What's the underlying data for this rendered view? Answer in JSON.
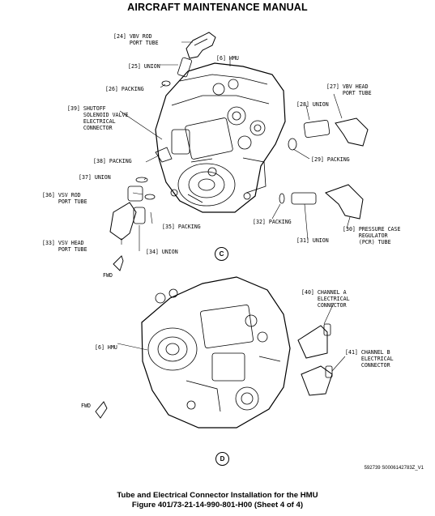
{
  "header": {
    "title": "AIRCRAFT MAINTENANCE MANUAL"
  },
  "view_c": {
    "callouts": [
      "[24] VBV ROD\n     PORT TUBE",
      "[25] UNION",
      "[6] HMU",
      "[26] PACKING",
      "[27] VBV HEAD\n     PORT TUBE",
      "[28] UNION",
      "[39] SHUTOFF\n     SOLENOID VALVE\n     ELECTRICAL\n     CONNECTOR",
      "[29] PACKING",
      "[38] PACKING",
      "[37] UNION",
      "[36] VSV ROD\n     PORT TUBE",
      "[35] PACKING",
      "[32] PACKING",
      "[30] PRESSURE CASE\n     REGULATOR\n     (PCR) TUBE",
      "[31] UNION",
      "[33] VSV HEAD\n     PORT TUBE",
      "[34] UNION"
    ],
    "fwd_label": "FWD",
    "view_letter": "C"
  },
  "view_d": {
    "callouts": [
      "[40] CHANNEL A\n     ELECTRICAL\n     CONNECTOR",
      "[6] HMU",
      "[41] CHANNEL B\n     ELECTRICAL\n     CONNECTOR"
    ],
    "fwd_label": "FWD",
    "view_letter": "D"
  },
  "figure_ref": "592739 S0006142783Z_V1",
  "caption": {
    "line1": "Tube and Electrical Connector Installation for the HMU",
    "line2": "Figure 401/73-21-14-990-801-H00  (Sheet 4 of 4)"
  }
}
